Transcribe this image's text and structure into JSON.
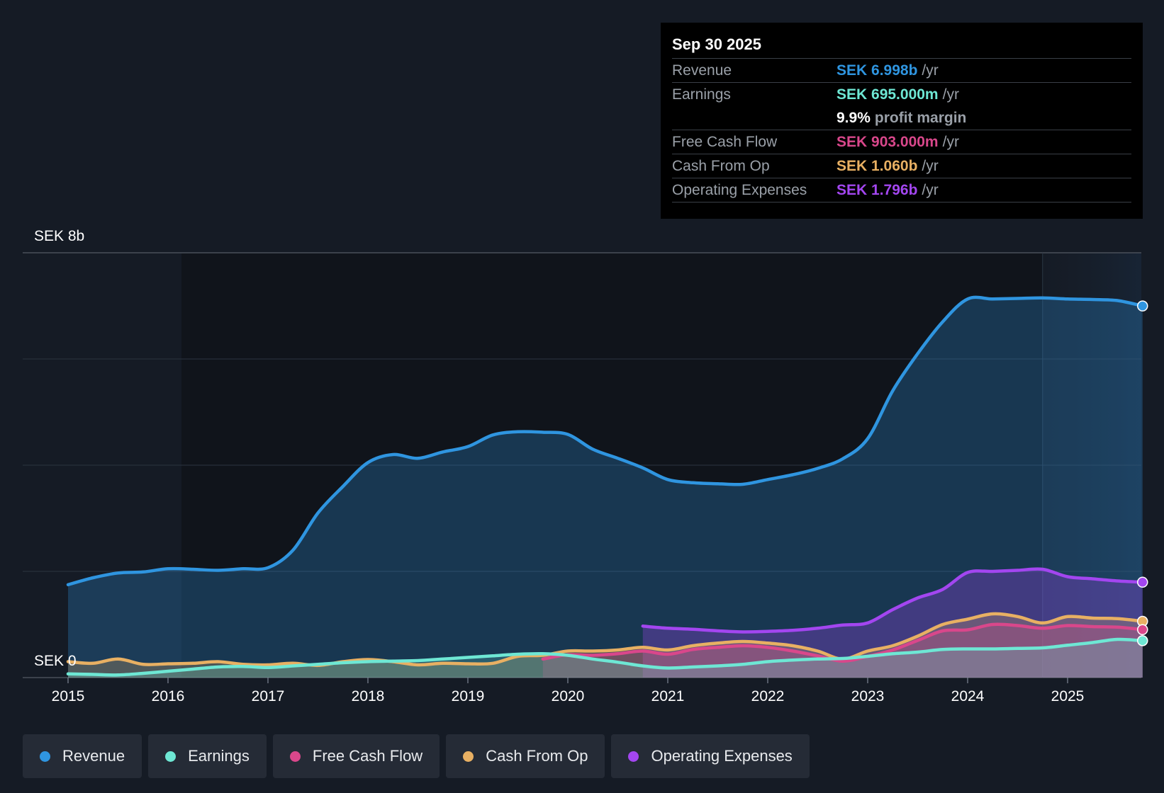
{
  "tooltip": {
    "date": "Sep 30 2025",
    "rows": [
      {
        "label": "Revenue",
        "value": "SEK 6.998b",
        "unit": "/yr",
        "color": "#2f95e0"
      },
      {
        "label": "Earnings",
        "value": "SEK 695.000m",
        "unit": "/yr",
        "color": "#6ee7d4"
      },
      {
        "label": "",
        "value": "9.9%",
        "unit": "profit margin",
        "color": "#ffffff"
      },
      {
        "label": "Free Cash Flow",
        "value": "SEK 903.000m",
        "unit": "/yr",
        "color": "#d9478b"
      },
      {
        "label": "Cash From Op",
        "value": "SEK 1.060b",
        "unit": "/yr",
        "color": "#e8b063"
      },
      {
        "label": "Operating Expenses",
        "value": "SEK 1.796b",
        "unit": "/yr",
        "color": "#a346f0"
      }
    ]
  },
  "legend": [
    {
      "label": "Revenue",
      "color": "#2f95e0"
    },
    {
      "label": "Earnings",
      "color": "#6ee7d4"
    },
    {
      "label": "Free Cash Flow",
      "color": "#d9478b"
    },
    {
      "label": "Cash From Op",
      "color": "#e8b063"
    },
    {
      "label": "Operating Expenses",
      "color": "#a346f0"
    }
  ],
  "chart_data": {
    "type": "area",
    "title": "",
    "xlabel": "",
    "ylabel": "",
    "y_top_label": "SEK 8b",
    "y_bottom_label": "SEK 0",
    "ylim": [
      0,
      8
    ],
    "xlim": [
      2015.0,
      2025.75
    ],
    "x_ticks": [
      "2015",
      "2016",
      "2017",
      "2018",
      "2019",
      "2020",
      "2021",
      "2022",
      "2023",
      "2024",
      "2025"
    ],
    "forecast_start": 2024.75,
    "series": [
      {
        "name": "Revenue",
        "color": "#2f95e0",
        "points": [
          [
            2015.0,
            1.75
          ],
          [
            2015.25,
            1.88
          ],
          [
            2015.5,
            1.97
          ],
          [
            2015.75,
            1.99
          ],
          [
            2016.0,
            2.05
          ],
          [
            2016.25,
            2.04
          ],
          [
            2016.5,
            2.02
          ],
          [
            2016.75,
            2.05
          ],
          [
            2017.0,
            2.07
          ],
          [
            2017.25,
            2.4
          ],
          [
            2017.5,
            3.1
          ],
          [
            2017.75,
            3.6
          ],
          [
            2018.0,
            4.05
          ],
          [
            2018.25,
            4.2
          ],
          [
            2018.5,
            4.13
          ],
          [
            2018.75,
            4.25
          ],
          [
            2019.0,
            4.35
          ],
          [
            2019.25,
            4.57
          ],
          [
            2019.5,
            4.63
          ],
          [
            2019.75,
            4.62
          ],
          [
            2020.0,
            4.58
          ],
          [
            2020.25,
            4.3
          ],
          [
            2020.5,
            4.13
          ],
          [
            2020.75,
            3.95
          ],
          [
            2021.0,
            3.73
          ],
          [
            2021.25,
            3.67
          ],
          [
            2021.5,
            3.65
          ],
          [
            2021.75,
            3.64
          ],
          [
            2022.0,
            3.73
          ],
          [
            2022.25,
            3.82
          ],
          [
            2022.5,
            3.94
          ],
          [
            2022.75,
            4.12
          ],
          [
            2023.0,
            4.5
          ],
          [
            2023.25,
            5.4
          ],
          [
            2023.5,
            6.1
          ],
          [
            2023.75,
            6.7
          ],
          [
            2024.0,
            7.13
          ],
          [
            2024.25,
            7.13
          ],
          [
            2024.5,
            7.14
          ],
          [
            2024.75,
            7.15
          ],
          [
            2025.0,
            7.13
          ],
          [
            2025.25,
            7.12
          ],
          [
            2025.5,
            7.1
          ],
          [
            2025.75,
            6.998
          ]
        ]
      },
      {
        "name": "Operating Expenses",
        "color": "#a346f0",
        "points": [
          [
            2020.75,
            0.97
          ],
          [
            2021.0,
            0.93
          ],
          [
            2021.25,
            0.91
          ],
          [
            2021.5,
            0.88
          ],
          [
            2021.75,
            0.86
          ],
          [
            2022.0,
            0.87
          ],
          [
            2022.25,
            0.89
          ],
          [
            2022.5,
            0.93
          ],
          [
            2022.75,
            0.99
          ],
          [
            2023.0,
            1.03
          ],
          [
            2023.25,
            1.28
          ],
          [
            2023.5,
            1.5
          ],
          [
            2023.75,
            1.66
          ],
          [
            2024.0,
            1.98
          ],
          [
            2024.25,
            2.0
          ],
          [
            2024.5,
            2.02
          ],
          [
            2024.75,
            2.04
          ],
          [
            2025.0,
            1.9
          ],
          [
            2025.25,
            1.86
          ],
          [
            2025.5,
            1.82
          ],
          [
            2025.75,
            1.796
          ]
        ]
      },
      {
        "name": "Cash From Op",
        "color": "#e8b063",
        "points": [
          [
            2015.0,
            0.3
          ],
          [
            2015.25,
            0.27
          ],
          [
            2015.5,
            0.35
          ],
          [
            2015.75,
            0.25
          ],
          [
            2016.0,
            0.26
          ],
          [
            2016.25,
            0.27
          ],
          [
            2016.5,
            0.3
          ],
          [
            2016.75,
            0.25
          ],
          [
            2017.0,
            0.24
          ],
          [
            2017.25,
            0.27
          ],
          [
            2017.5,
            0.23
          ],
          [
            2017.75,
            0.3
          ],
          [
            2018.0,
            0.34
          ],
          [
            2018.25,
            0.3
          ],
          [
            2018.5,
            0.24
          ],
          [
            2018.75,
            0.27
          ],
          [
            2019.0,
            0.26
          ],
          [
            2019.25,
            0.27
          ],
          [
            2019.5,
            0.4
          ],
          [
            2019.75,
            0.42
          ],
          [
            2020.0,
            0.5
          ],
          [
            2020.25,
            0.5
          ],
          [
            2020.5,
            0.52
          ],
          [
            2020.75,
            0.57
          ],
          [
            2021.0,
            0.52
          ],
          [
            2021.25,
            0.6
          ],
          [
            2021.5,
            0.65
          ],
          [
            2021.75,
            0.68
          ],
          [
            2022.0,
            0.65
          ],
          [
            2022.25,
            0.6
          ],
          [
            2022.5,
            0.5
          ],
          [
            2022.75,
            0.35
          ],
          [
            2023.0,
            0.5
          ],
          [
            2023.25,
            0.6
          ],
          [
            2023.5,
            0.78
          ],
          [
            2023.75,
            1.0
          ],
          [
            2024.0,
            1.1
          ],
          [
            2024.25,
            1.2
          ],
          [
            2024.5,
            1.15
          ],
          [
            2024.75,
            1.03
          ],
          [
            2025.0,
            1.15
          ],
          [
            2025.25,
            1.12
          ],
          [
            2025.5,
            1.11
          ],
          [
            2025.75,
            1.06
          ]
        ]
      },
      {
        "name": "Free Cash Flow",
        "color": "#d9478b",
        "points": [
          [
            2019.75,
            0.35
          ],
          [
            2020.0,
            0.43
          ],
          [
            2020.25,
            0.42
          ],
          [
            2020.5,
            0.45
          ],
          [
            2020.75,
            0.5
          ],
          [
            2021.0,
            0.44
          ],
          [
            2021.25,
            0.53
          ],
          [
            2021.5,
            0.57
          ],
          [
            2021.75,
            0.6
          ],
          [
            2022.0,
            0.57
          ],
          [
            2022.25,
            0.5
          ],
          [
            2022.5,
            0.41
          ],
          [
            2022.75,
            0.31
          ],
          [
            2023.0,
            0.4
          ],
          [
            2023.25,
            0.52
          ],
          [
            2023.5,
            0.7
          ],
          [
            2023.75,
            0.88
          ],
          [
            2024.0,
            0.9
          ],
          [
            2024.25,
            1.0
          ],
          [
            2024.5,
            0.98
          ],
          [
            2024.75,
            0.93
          ],
          [
            2025.0,
            0.98
          ],
          [
            2025.25,
            0.96
          ],
          [
            2025.5,
            0.95
          ],
          [
            2025.75,
            0.903
          ]
        ]
      },
      {
        "name": "Earnings",
        "color": "#6ee7d4",
        "points": [
          [
            2015.0,
            0.07
          ],
          [
            2015.25,
            0.06
          ],
          [
            2015.5,
            0.05
          ],
          [
            2015.75,
            0.08
          ],
          [
            2016.0,
            0.12
          ],
          [
            2016.25,
            0.16
          ],
          [
            2016.5,
            0.2
          ],
          [
            2016.75,
            0.21
          ],
          [
            2017.0,
            0.19
          ],
          [
            2017.25,
            0.22
          ],
          [
            2017.5,
            0.25
          ],
          [
            2017.75,
            0.28
          ],
          [
            2018.0,
            0.3
          ],
          [
            2018.25,
            0.31
          ],
          [
            2018.5,
            0.32
          ],
          [
            2018.75,
            0.35
          ],
          [
            2019.0,
            0.38
          ],
          [
            2019.25,
            0.41
          ],
          [
            2019.5,
            0.44
          ],
          [
            2019.75,
            0.45
          ],
          [
            2020.0,
            0.42
          ],
          [
            2020.25,
            0.35
          ],
          [
            2020.5,
            0.29
          ],
          [
            2020.75,
            0.22
          ],
          [
            2021.0,
            0.18
          ],
          [
            2021.25,
            0.2
          ],
          [
            2021.5,
            0.22
          ],
          [
            2021.75,
            0.25
          ],
          [
            2022.0,
            0.3
          ],
          [
            2022.25,
            0.33
          ],
          [
            2022.5,
            0.35
          ],
          [
            2022.75,
            0.36
          ],
          [
            2023.0,
            0.4
          ],
          [
            2023.25,
            0.45
          ],
          [
            2023.5,
            0.48
          ],
          [
            2023.75,
            0.53
          ],
          [
            2024.0,
            0.54
          ],
          [
            2024.25,
            0.54
          ],
          [
            2024.5,
            0.55
          ],
          [
            2024.75,
            0.56
          ],
          [
            2025.0,
            0.61
          ],
          [
            2025.25,
            0.66
          ],
          [
            2025.5,
            0.72
          ],
          [
            2025.75,
            0.695
          ]
        ]
      }
    ]
  }
}
